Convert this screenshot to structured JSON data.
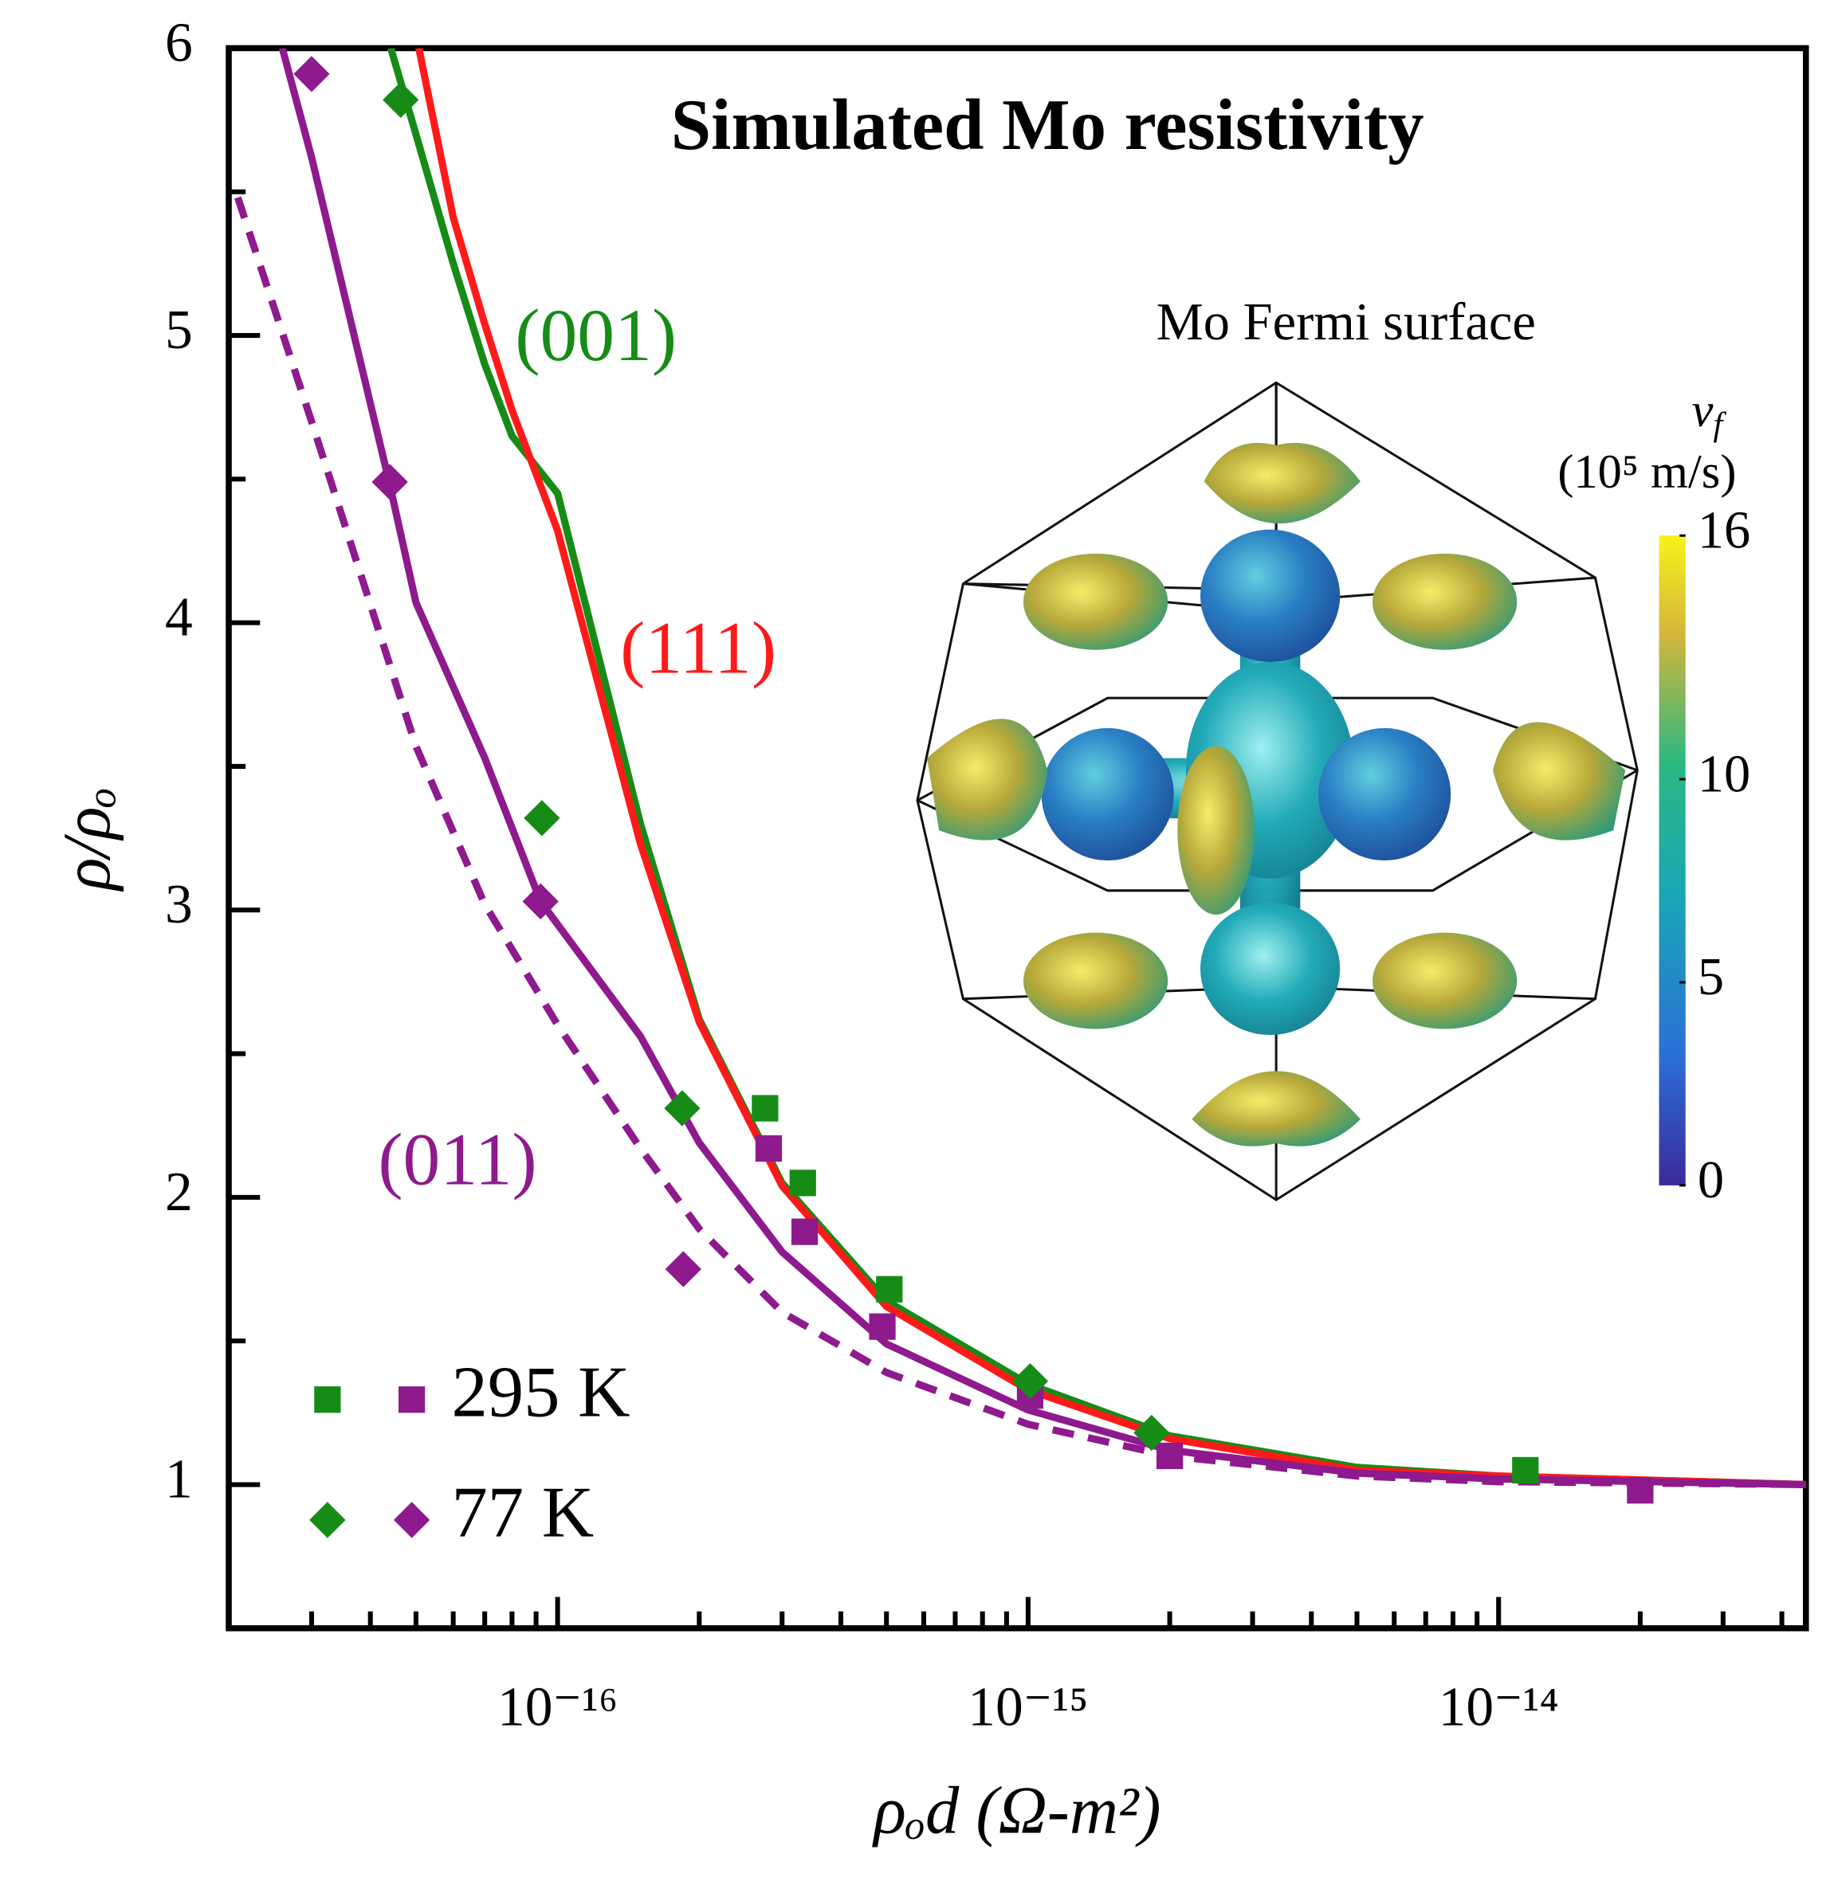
{
  "chart_data": {
    "type": "scatter-line",
    "title": "Simulated Mo resistivity",
    "xlabel": "ρₒd (Ω-m²)",
    "ylabel": "ρ/ρₒ",
    "xscale": "log",
    "xlim": [
      2e-17,
      4.5e-14
    ],
    "ylim": [
      0.5,
      6
    ],
    "xticks": [
      {
        "value": 1e-16,
        "label": "10⁻¹⁶"
      },
      {
        "value": 1e-15,
        "label": "10⁻¹⁵"
      },
      {
        "value": 1e-14,
        "label": "10⁻¹⁴"
      }
    ],
    "xminorticks": [
      3e-17,
      4e-17,
      5e-17,
      6e-17,
      7e-17,
      8e-17,
      9e-17,
      2e-16,
      3e-16,
      4e-16,
      5e-16,
      6e-16,
      7e-16,
      8e-16,
      9e-16,
      2e-15,
      3e-15,
      4e-15,
      5e-15,
      6e-15,
      7e-15,
      8e-15,
      9e-15,
      2e-14,
      3e-14,
      4e-14
    ],
    "yticks": [
      1,
      2,
      3,
      4,
      5,
      6
    ],
    "yminorticks": [
      1.5,
      2.5,
      3.5,
      4.5,
      5.5
    ],
    "legend": "lower left",
    "lines": [
      {
        "name": "(001)",
        "color": "#168c16",
        "style": "solid",
        "x": [
          4.42e-17,
          5e-17,
          6e-17,
          7e-17,
          8e-17,
          1e-16,
          1.5e-16,
          2e-16,
          3e-16,
          5e-16,
          1e-15,
          2e-15,
          5e-15,
          1e-14,
          4.5e-14
        ],
        "values": [
          6,
          5.7,
          5.25,
          4.9,
          4.65,
          4.45,
          3.3,
          2.62,
          2.05,
          1.64,
          1.35,
          1.17,
          1.06,
          1.03,
          1.0
        ]
      },
      {
        "name": "(111)",
        "color": "#ff1a1a",
        "style": "solid",
        "x": [
          5.07e-17,
          6e-17,
          7e-17,
          8e-17,
          1e-16,
          1.5e-16,
          2e-16,
          3e-16,
          5e-16,
          1e-15,
          2e-15,
          5e-15,
          1e-14,
          4.5e-14
        ],
        "values": [
          6,
          5.41,
          5.04,
          4.74,
          4.32,
          3.23,
          2.61,
          2.04,
          1.62,
          1.33,
          1.16,
          1.05,
          1.03,
          1.0
        ]
      },
      {
        "name": "(011)",
        "color": "#8e1a8e",
        "style": "solid",
        "x": [
          2.6e-17,
          3e-17,
          4.4e-17,
          5e-17,
          7e-17,
          9.2e-17,
          1.5e-16,
          2e-16,
          3e-16,
          5e-16,
          1e-15,
          2e-15,
          5e-15,
          1e-14,
          4.5e-14
        ],
        "values": [
          6,
          5.62,
          4.48,
          4.07,
          3.53,
          3.03,
          2.56,
          2.19,
          1.81,
          1.49,
          1.26,
          1.12,
          1.04,
          1.02,
          1.0
        ]
      },
      {
        "color": "#8e1a8e",
        "style": "dashed",
        "x": [
          2.09e-17,
          3e-17,
          5e-17,
          7e-17,
          1e-16,
          1.5e-16,
          2e-16,
          3e-16,
          5e-16,
          1e-15,
          2e-15,
          5e-15,
          1e-14,
          4.5e-14
        ],
        "values": [
          5.48,
          4.7,
          3.57,
          3.02,
          2.6,
          2.17,
          1.89,
          1.6,
          1.39,
          1.21,
          1.1,
          1.03,
          1.01,
          1.0
        ]
      }
    ],
    "series": [
      {
        "name": "295 K",
        "color": "#168c16",
        "marker": "square",
        "x": [
          2.76e-16,
          3.32e-16,
          5.07e-16,
          1.14e-14
        ],
        "values": [
          2.31,
          2.05,
          1.68,
          1.05
        ]
      },
      {
        "name": "295 K",
        "color": "#8e1a8e",
        "marker": "square",
        "x": [
          2.81e-16,
          3.35e-16,
          4.9e-16,
          1.01e-15,
          2e-15,
          2e-14
        ],
        "values": [
          2.17,
          1.88,
          1.55,
          1.31,
          1.1,
          0.98
        ]
      },
      {
        "name": "77 K",
        "color": "#168c16",
        "marker": "diamond",
        "x": [
          4.64e-17,
          9.26e-17,
          1.84e-16,
          1.01e-15,
          1.83e-15
        ],
        "values": [
          5.82,
          3.32,
          2.31,
          1.36,
          1.18
        ]
      },
      {
        "name": "77 K",
        "color": "#8e1a8e",
        "marker": "diamond",
        "x": [
          3e-17,
          4.4e-17,
          9.2e-17,
          1.85e-16
        ],
        "values": [
          5.91,
          4.49,
          3.03,
          1.75
        ]
      }
    ],
    "inset": {
      "title": "Mo Fermi surface",
      "colorbar": {
        "symbol": "v",
        "subscript": "f",
        "units": "(10⁵ m/s)",
        "lim": [
          0,
          16
        ],
        "ticks": [
          0,
          5,
          10,
          16
        ]
      }
    }
  }
}
